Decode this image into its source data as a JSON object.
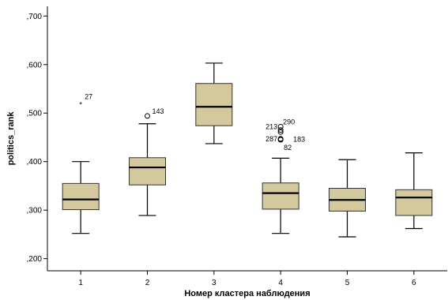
{
  "chart_data": {
    "type": "boxplot",
    "xlabel": "Номер кластера наблюдения",
    "ylabel": "politics_rank",
    "ylim": [
      0.175,
      0.72
    ],
    "yticks": [
      ",200",
      ",300",
      ",400",
      ",500",
      ",600",
      ",700"
    ],
    "ytick_values": [
      0.2,
      0.3,
      0.4,
      0.5,
      0.6,
      0.7
    ],
    "categories": [
      "1",
      "2",
      "3",
      "4",
      "5",
      "6"
    ],
    "box_color": "#d3c99c",
    "grid": false,
    "boxes": [
      {
        "category": "1",
        "min": 0.252,
        "q1": 0.301,
        "median": 0.322,
        "q3": 0.355,
        "max": 0.4,
        "outliers": [
          {
            "value": 0.524,
            "marker": "star",
            "label": "27"
          }
        ]
      },
      {
        "category": "2",
        "min": 0.289,
        "q1": 0.352,
        "median": 0.388,
        "q3": 0.408,
        "max": 0.478,
        "outliers": [
          {
            "value": 0.494,
            "marker": "circle",
            "label": "143"
          }
        ]
      },
      {
        "category": "3",
        "min": 0.437,
        "q1": 0.474,
        "median": 0.513,
        "q3": 0.561,
        "max": 0.603,
        "outliers": []
      },
      {
        "category": "4",
        "min": 0.252,
        "q1": 0.302,
        "median": 0.335,
        "q3": 0.356,
        "max": 0.407,
        "outliers": [
          {
            "value": 0.472,
            "marker": "circle",
            "label": "213"
          },
          {
            "value": 0.465,
            "marker": "circle",
            "label": "290"
          },
          {
            "value": 0.461,
            "marker": "circle",
            "label": ""
          },
          {
            "value": 0.447,
            "marker": "circle",
            "label": "287"
          },
          {
            "value": 0.446,
            "marker": "circle",
            "label": "183"
          },
          {
            "value": 0.445,
            "marker": "circle",
            "label": "82"
          }
        ]
      },
      {
        "category": "5",
        "min": 0.245,
        "q1": 0.298,
        "median": 0.321,
        "q3": 0.345,
        "max": 0.404,
        "outliers": []
      },
      {
        "category": "6",
        "min": 0.262,
        "q1": 0.289,
        "median": 0.326,
        "q3": 0.342,
        "max": 0.418,
        "outliers": []
      }
    ]
  }
}
